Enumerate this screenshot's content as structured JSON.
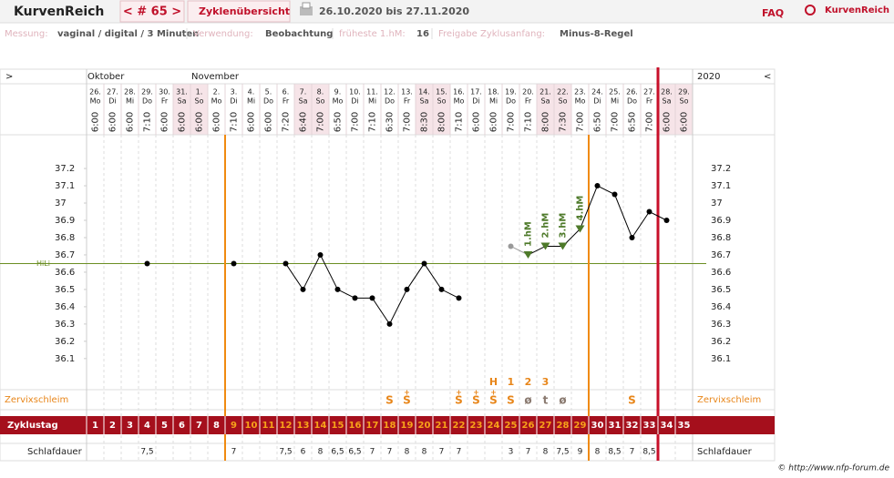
{
  "header": {
    "brand": "KurvenReich",
    "cycle": "< # 65 >",
    "tab": "Zyklenübersicht",
    "range": "26.10.2020 bis 27.11.2020",
    "faq": "FAQ",
    "logo": "KurvenReich"
  },
  "settings": [
    {
      "label": "Messung:",
      "value": "vaginal / digital / 3 Minuten"
    },
    {
      "label": "Verwendung:",
      "value": "Beobachtung"
    },
    {
      "label": "früheste 1.hM:",
      "value": "16"
    },
    {
      "label": "Freigabe Zyklusanfang:",
      "value": "Minus-8-Regel"
    }
  ],
  "chart_data": {
    "type": "line",
    "nav_left": ">",
    "nav_right": "<",
    "year": "2020",
    "month_labels": [
      "Oktober",
      null,
      null,
      null,
      null,
      null,
      "November",
      null,
      null,
      null,
      null,
      null,
      null,
      null,
      null,
      null,
      null,
      null,
      null,
      null,
      null,
      null,
      null,
      null,
      null,
      null,
      null,
      null,
      null,
      null,
      null,
      null,
      null,
      null,
      null
    ],
    "categories": [
      "26.",
      "27.",
      "28.",
      "29.",
      "30.",
      "31.",
      "1.",
      "2.",
      "3.",
      "4.",
      "5.",
      "6.",
      "7.",
      "8.",
      "9.",
      "10.",
      "11.",
      "12.",
      "13.",
      "14.",
      "15.",
      "16.",
      "17.",
      "18.",
      "19.",
      "20.",
      "21.",
      "22.",
      "23.",
      "24.",
      "25.",
      "26.",
      "27.",
      "28.",
      "29."
    ],
    "weekdays": [
      "Mo",
      "Di",
      "Mi",
      "Do",
      "Fr",
      "Sa",
      "So",
      "Mo",
      "Di",
      "Mi",
      "Do",
      "Fr",
      "Sa",
      "So",
      "Mo",
      "Di",
      "Mi",
      "Do",
      "Fr",
      "Sa",
      "So",
      "Mo",
      "Di",
      "Mi",
      "Do",
      "Fr",
      "Sa",
      "So",
      "Mo",
      "Di",
      "Mi",
      "Do",
      "Fr",
      "Sa",
      "So"
    ],
    "times": [
      "6:00",
      "6:00",
      "6:00",
      "7:10",
      "6:00",
      "6:00",
      "6:00",
      "6:00",
      "7:10",
      "6:00",
      "6:00",
      "7:20",
      "6:40",
      "7:00",
      "6:50",
      "7:00",
      "7:10",
      "6:30",
      "7:00",
      "8:30",
      "8:00",
      "7:10",
      "6:00",
      "6:00",
      "7:00",
      "7:10",
      "8:00",
      "7:30",
      "7:00",
      "6:50",
      "7:00",
      "6:50",
      "7:00",
      "6:00",
      "6:00"
    ],
    "values": [
      null,
      null,
      null,
      36.65,
      null,
      null,
      null,
      null,
      36.65,
      null,
      null,
      36.65,
      36.5,
      36.7,
      36.5,
      36.45,
      36.45,
      36.3,
      36.5,
      36.65,
      36.5,
      36.45,
      null,
      null,
      null,
      36.7,
      36.75,
      36.75,
      36.85,
      37.1,
      37.05,
      36.8,
      36.95,
      36.9,
      null
    ],
    "color": "#000000",
    "excluded_values": [
      null,
      null,
      null,
      null,
      null,
      null,
      null,
      null,
      null,
      null,
      null,
      null,
      null,
      null,
      null,
      null,
      null,
      null,
      null,
      null,
      null,
      null,
      null,
      null,
      36.75,
      null,
      null,
      null,
      null,
      null,
      null,
      null,
      null,
      null,
      null
    ],
    "excluded_color": "#999999",
    "ylim": [
      35.92,
      37.39
    ],
    "yticks": [
      36.1,
      36.2,
      36.3,
      36.4,
      36.5,
      36.6,
      36.7,
      36.8,
      36.9,
      37,
      37.1,
      37.2
    ],
    "coverline": {
      "label": "HiLi",
      "value": 36.65,
      "color": "#6b8e23"
    },
    "hm_labels": [
      null,
      null,
      null,
      null,
      null,
      null,
      null,
      null,
      null,
      null,
      null,
      null,
      null,
      null,
      null,
      null,
      null,
      null,
      null,
      null,
      null,
      null,
      null,
      null,
      null,
      "1.hM",
      "2.hM",
      "3.hM",
      "4.hM",
      null,
      null,
      null,
      null,
      null,
      null
    ],
    "hm_color": "#4e7a2a",
    "mucus_title": "Zervixschleim",
    "mucus": [
      null,
      null,
      null,
      null,
      null,
      null,
      null,
      null,
      null,
      null,
      null,
      null,
      null,
      null,
      null,
      null,
      null,
      "S",
      "S",
      null,
      null,
      "S",
      "S",
      "S",
      "S",
      "ø",
      "t",
      "ø",
      null,
      null,
      null,
      "S",
      null,
      null,
      null
    ],
    "mucus_plus": [
      null,
      null,
      null,
      null,
      null,
      null,
      null,
      null,
      null,
      null,
      null,
      null,
      null,
      null,
      null,
      null,
      null,
      null,
      "+",
      null,
      null,
      "+",
      "+",
      "+",
      null,
      null,
      null,
      null,
      null,
      null,
      null,
      null,
      null,
      null,
      null
    ],
    "peak_labels": [
      null,
      null,
      null,
      null,
      null,
      null,
      null,
      null,
      null,
      null,
      null,
      null,
      null,
      null,
      null,
      null,
      null,
      null,
      null,
      null,
      null,
      null,
      null,
      "H",
      "1",
      "2",
      "3",
      null,
      null,
      null,
      null,
      null,
      null,
      null,
      null
    ],
    "cycle_title": "Zyklustag",
    "cycle_days": [
      1,
      2,
      3,
      4,
      5,
      6,
      7,
      8,
      9,
      10,
      11,
      12,
      13,
      14,
      15,
      16,
      17,
      18,
      19,
      20,
      21,
      22,
      23,
      24,
      25,
      26,
      27,
      28,
      29,
      30,
      31,
      32,
      33,
      34,
      35
    ],
    "sleep_title": "Schlafdauer",
    "sleep": [
      null,
      null,
      null,
      "7,5",
      null,
      null,
      null,
      null,
      "7",
      null,
      null,
      "7,5",
      "6",
      "8",
      "6,5",
      "6,5",
      "7",
      "7",
      "8",
      "8",
      "7",
      "7",
      null,
      null,
      "3",
      "7",
      "8",
      "7,5",
      "9",
      "8",
      "8,5",
      "7",
      "8,5",
      null,
      null
    ],
    "copyright": "© http://www.nfp-forum.de"
  }
}
